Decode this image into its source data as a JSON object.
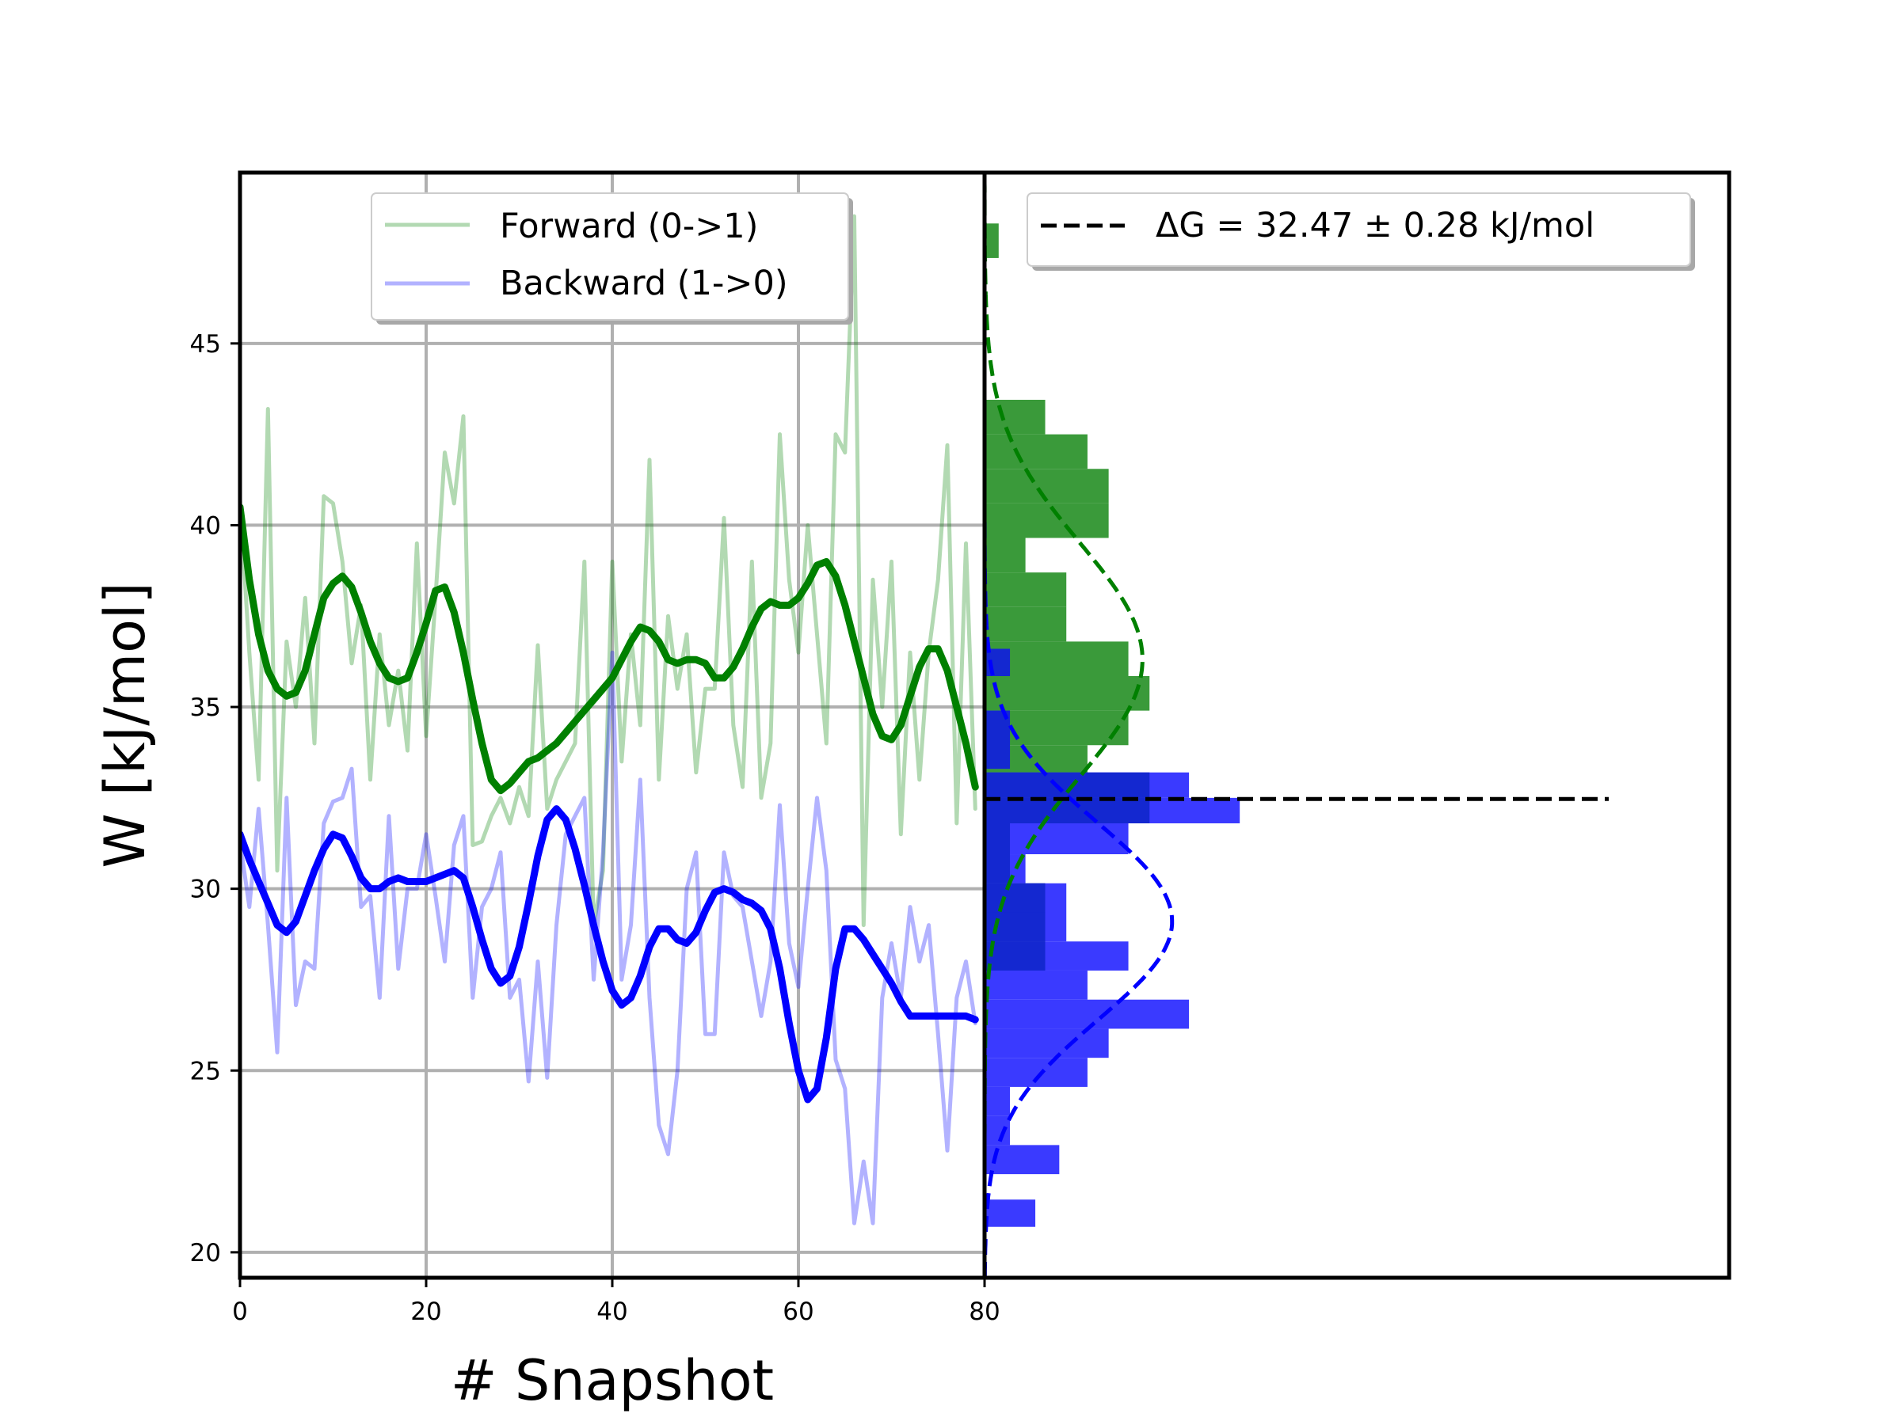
{
  "chart_data": [
    {
      "type": "line",
      "xlabel": "# Snapshot",
      "ylabel": "W [kJ/mol]",
      "xlim": [
        0,
        80
      ],
      "ylim": [
        19.3,
        49.7
      ],
      "x_ticks": [
        "0",
        "20",
        "40",
        "60",
        "80"
      ],
      "y_ticks": [
        "20",
        "25",
        "30",
        "35",
        "40",
        "45"
      ],
      "grid": true,
      "legend": {
        "placement": "top-center",
        "entries": [
          "Forward (0->1)",
          "Backward (1->0)"
        ]
      },
      "colors": {
        "forward": "#008000",
        "backward": "#0000ff"
      },
      "series": [
        {
          "name": "Forward (0->1)",
          "kind": "raw",
          "x": [
            0,
            1,
            2,
            3,
            4,
            5,
            6,
            7,
            8,
            9,
            10,
            11,
            12,
            13,
            14,
            15,
            16,
            17,
            18,
            19,
            20,
            21,
            22,
            23,
            24,
            25,
            26,
            27,
            28,
            29,
            30,
            31,
            32,
            33,
            34,
            35,
            36,
            37,
            38,
            39,
            40,
            41,
            42,
            43,
            44,
            45,
            46,
            47,
            48,
            49,
            50,
            51,
            52,
            53,
            54,
            55,
            56,
            57,
            58,
            59,
            60,
            61,
            62,
            63,
            64,
            65,
            66,
            67,
            68,
            69,
            70,
            71,
            72,
            73,
            74,
            75,
            76,
            77,
            78,
            79
          ],
          "values": [
            40.7,
            36.5,
            33.0,
            43.2,
            30.5,
            36.8,
            35.0,
            38.0,
            34.0,
            40.8,
            40.6,
            39.0,
            36.2,
            37.8,
            33.0,
            37.0,
            34.5,
            36.0,
            33.8,
            39.5,
            34.2,
            38.0,
            42.0,
            40.6,
            43.0,
            31.2,
            31.3,
            32.0,
            32.5,
            31.8,
            32.8,
            32.0,
            36.7,
            32.2,
            33.0,
            33.5,
            34.0,
            39.0,
            29.0,
            30.5,
            39.0,
            33.5,
            37.0,
            34.5,
            41.8,
            33.0,
            37.5,
            35.5,
            37.0,
            33.2,
            35.5,
            35.5,
            40.2,
            34.5,
            32.8,
            39.0,
            32.5,
            34.0,
            42.5,
            38.5,
            36.5,
            40.0,
            37.0,
            34.0,
            42.5,
            42.0,
            48.5,
            29.0,
            38.5,
            35.0,
            39.0,
            31.5,
            36.5,
            33.0,
            36.5,
            38.5,
            42.2,
            31.8,
            39.5,
            32.2
          ]
        },
        {
          "name": "Backward (1->0)",
          "kind": "raw",
          "x": [
            0,
            1,
            2,
            3,
            4,
            5,
            6,
            7,
            8,
            9,
            10,
            11,
            12,
            13,
            14,
            15,
            16,
            17,
            18,
            19,
            20,
            21,
            22,
            23,
            24,
            25,
            26,
            27,
            28,
            29,
            30,
            31,
            32,
            33,
            34,
            35,
            36,
            37,
            38,
            39,
            40,
            41,
            42,
            43,
            44,
            45,
            46,
            47,
            48,
            49,
            50,
            51,
            52,
            53,
            54,
            55,
            56,
            57,
            58,
            59,
            60,
            61,
            62,
            63,
            64,
            65,
            66,
            67,
            68,
            69,
            70,
            71,
            72,
            73,
            74,
            75,
            76,
            77,
            78,
            79
          ],
          "values": [
            31.3,
            29.5,
            32.2,
            29.0,
            25.5,
            32.5,
            26.8,
            28.0,
            27.8,
            31.8,
            32.4,
            32.5,
            33.3,
            29.5,
            29.8,
            27.0,
            32.0,
            27.8,
            30.0,
            30.0,
            31.5,
            29.8,
            28.0,
            31.2,
            32.0,
            27.0,
            29.5,
            30.0,
            31.0,
            27.0,
            27.5,
            24.7,
            28.0,
            24.8,
            29.0,
            31.5,
            32.0,
            32.5,
            27.5,
            31.0,
            36.5,
            27.5,
            29.0,
            33.0,
            27.0,
            23.5,
            22.7,
            25.0,
            30.0,
            31.0,
            26.0,
            26.0,
            31.0,
            29.8,
            29.5,
            28.0,
            26.5,
            28.0,
            32.3,
            28.5,
            27.3,
            30.0,
            32.5,
            30.5,
            25.3,
            24.5,
            20.8,
            22.5,
            20.8,
            27.0,
            28.5,
            27.0,
            29.5,
            28.0,
            29.0,
            26.0,
            22.8,
            27.0,
            28.0,
            26.3
          ]
        },
        {
          "name": "",
          "kind": "smoothed forward",
          "x": [
            0,
            1,
            2,
            3,
            4,
            5,
            6,
            7,
            8,
            9,
            10,
            11,
            12,
            13,
            14,
            15,
            16,
            17,
            18,
            19,
            20,
            21,
            22,
            23,
            24,
            25,
            26,
            27,
            28,
            29,
            30,
            31,
            32,
            33,
            34,
            35,
            36,
            37,
            38,
            39,
            40,
            41,
            42,
            43,
            44,
            45,
            46,
            47,
            48,
            49,
            50,
            51,
            52,
            53,
            54,
            55,
            56,
            57,
            58,
            59,
            60,
            61,
            62,
            63,
            64,
            65,
            66,
            67,
            68,
            69,
            70,
            71,
            72,
            73,
            74,
            75,
            76,
            77,
            78,
            79
          ],
          "values": [
            40.5,
            38.5,
            37.0,
            36.0,
            35.5,
            35.3,
            35.4,
            36.0,
            37.0,
            38.0,
            38.4,
            38.6,
            38.3,
            37.6,
            36.8,
            36.2,
            35.8,
            35.7,
            35.8,
            36.5,
            37.3,
            38.2,
            38.3,
            37.6,
            36.5,
            35.2,
            34.0,
            33.0,
            32.7,
            32.9,
            33.2,
            33.5,
            33.6,
            33.8,
            34.0,
            34.3,
            34.6,
            34.9,
            35.2,
            35.5,
            35.8,
            36.3,
            36.8,
            37.2,
            37.1,
            36.8,
            36.3,
            36.2,
            36.3,
            36.3,
            36.2,
            35.8,
            35.8,
            36.1,
            36.6,
            37.2,
            37.7,
            37.9,
            37.8,
            37.8,
            38.0,
            38.4,
            38.9,
            39.0,
            38.6,
            37.8,
            36.8,
            35.8,
            34.8,
            34.2,
            34.1,
            34.5,
            35.3,
            36.1,
            36.6,
            36.6,
            36.0,
            35.0,
            34.0,
            32.8
          ]
        },
        {
          "name": "",
          "kind": "smoothed backward",
          "x": [
            0,
            1,
            2,
            3,
            4,
            5,
            6,
            7,
            8,
            9,
            10,
            11,
            12,
            13,
            14,
            15,
            16,
            17,
            18,
            19,
            20,
            21,
            22,
            23,
            24,
            25,
            26,
            27,
            28,
            29,
            30,
            31,
            32,
            33,
            34,
            35,
            36,
            37,
            38,
            39,
            40,
            41,
            42,
            43,
            44,
            45,
            46,
            47,
            48,
            49,
            50,
            51,
            52,
            53,
            54,
            55,
            56,
            57,
            58,
            59,
            60,
            61,
            62,
            63,
            64,
            65,
            66,
            67,
            68,
            69,
            70,
            71,
            72,
            73,
            74,
            75,
            76,
            77,
            78,
            79
          ],
          "values": [
            31.5,
            30.8,
            30.2,
            29.6,
            29.0,
            28.8,
            29.1,
            29.8,
            30.5,
            31.1,
            31.5,
            31.4,
            30.9,
            30.3,
            30.0,
            30.0,
            30.2,
            30.3,
            30.2,
            30.2,
            30.2,
            30.3,
            30.4,
            30.5,
            30.3,
            29.5,
            28.6,
            27.8,
            27.4,
            27.6,
            28.4,
            29.6,
            30.9,
            31.9,
            32.2,
            31.9,
            31.1,
            30.1,
            29.0,
            28.0,
            27.2,
            26.8,
            27.0,
            27.6,
            28.4,
            28.9,
            28.9,
            28.6,
            28.5,
            28.8,
            29.4,
            29.9,
            30.0,
            29.9,
            29.7,
            29.6,
            29.4,
            28.9,
            27.8,
            26.3,
            25.0,
            24.2,
            24.5,
            25.9,
            27.8,
            28.9,
            28.9,
            28.6,
            28.2,
            27.8,
            27.4,
            26.9,
            26.5,
            26.5,
            26.5,
            26.5,
            26.5,
            26.5,
            26.5,
            26.4
          ]
        }
      ]
    },
    {
      "type": "bar",
      "orientation": "horizontal",
      "ylim": [
        19.3,
        49.7
      ],
      "legend": {
        "placement": "top-right",
        "entries": [
          "ΔG = 32.47 ± 0.28 kJ/mol"
        ]
      },
      "dG_value": 32.47,
      "dG_label": "ΔG = 32.47 ± 0.28 kJ/mol",
      "colors": {
        "forward": "#3a9a3a",
        "backward": "#3a3aff",
        "overlap": "#1428d0",
        "fit_forward": "#008000",
        "fit_backward": "#0000ff",
        "dG_line": "#000000"
      },
      "series": [
        {
          "name": "",
          "kind": "histogram forward",
          "bins": [
            {
              "lo": 47.35,
              "hi": 48.3,
              "count": 1
            },
            {
              "lo": 42.5,
              "hi": 43.45,
              "count": 4.3
            },
            {
              "lo": 41.55,
              "hi": 42.5,
              "count": 7.3
            },
            {
              "lo": 40.6,
              "hi": 41.55,
              "count": 8.8
            },
            {
              "lo": 39.65,
              "hi": 40.6,
              "count": 8.8
            },
            {
              "lo": 38.7,
              "hi": 39.65,
              "count": 2.9
            },
            {
              "lo": 37.75,
              "hi": 38.7,
              "count": 5.8
            },
            {
              "lo": 36.8,
              "hi": 37.75,
              "count": 5.8
            },
            {
              "lo": 35.85,
              "hi": 36.8,
              "count": 10.2
            },
            {
              "lo": 34.9,
              "hi": 35.85,
              "count": 11.7
            },
            {
              "lo": 33.95,
              "hi": 34.9,
              "count": 10.2
            },
            {
              "lo": 33.0,
              "hi": 33.95,
              "count": 7.3
            },
            {
              "lo": 32.05,
              "hi": 33.0,
              "count": 11.7
            },
            {
              "lo": 31.1,
              "hi": 32.05,
              "count": 1.8
            },
            {
              "lo": 30.15,
              "hi": 31.1,
              "count": 1.8
            },
            {
              "lo": 29.2,
              "hi": 30.15,
              "count": 4.3
            },
            {
              "lo": 28.25,
              "hi": 29.2,
              "count": 4.3
            }
          ]
        },
        {
          "name": "",
          "kind": "histogram backward",
          "bins": [
            {
              "lo": 35.85,
              "hi": 36.6,
              "count": 1.8
            },
            {
              "lo": 33.3,
              "hi": 34.9,
              "count": 1.8
            },
            {
              "lo": 32.5,
              "hi": 33.2,
              "count": 14.5
            },
            {
              "lo": 31.8,
              "hi": 32.5,
              "count": 18.1
            },
            {
              "lo": 30.95,
              "hi": 31.8,
              "count": 10.2
            },
            {
              "lo": 30.15,
              "hi": 30.95,
              "count": 2.9
            },
            {
              "lo": 29.35,
              "hi": 30.15,
              "count": 5.8
            },
            {
              "lo": 28.55,
              "hi": 29.35,
              "count": 5.8
            },
            {
              "lo": 27.75,
              "hi": 28.55,
              "count": 10.2
            },
            {
              "lo": 26.95,
              "hi": 27.75,
              "count": 7.3
            },
            {
              "lo": 26.15,
              "hi": 26.95,
              "count": 14.5
            },
            {
              "lo": 25.35,
              "hi": 26.15,
              "count": 8.8
            },
            {
              "lo": 24.55,
              "hi": 25.35,
              "count": 7.3
            },
            {
              "lo": 23.75,
              "hi": 24.55,
              "count": 1.8
            },
            {
              "lo": 22.95,
              "hi": 23.75,
              "count": 1.8
            },
            {
              "lo": 22.15,
              "hi": 22.95,
              "count": 5.3
            },
            {
              "lo": 20.7,
              "hi": 21.45,
              "count": 3.6
            }
          ]
        },
        {
          "name": "",
          "kind": "gaussian fit forward",
          "mean": 36.3,
          "sd": 3.2,
          "peak_count": 11.2
        },
        {
          "name": "",
          "kind": "gaussian fit backward",
          "mean": 29.1,
          "sd": 2.7,
          "peak_count": 13.3
        }
      ]
    }
  ]
}
